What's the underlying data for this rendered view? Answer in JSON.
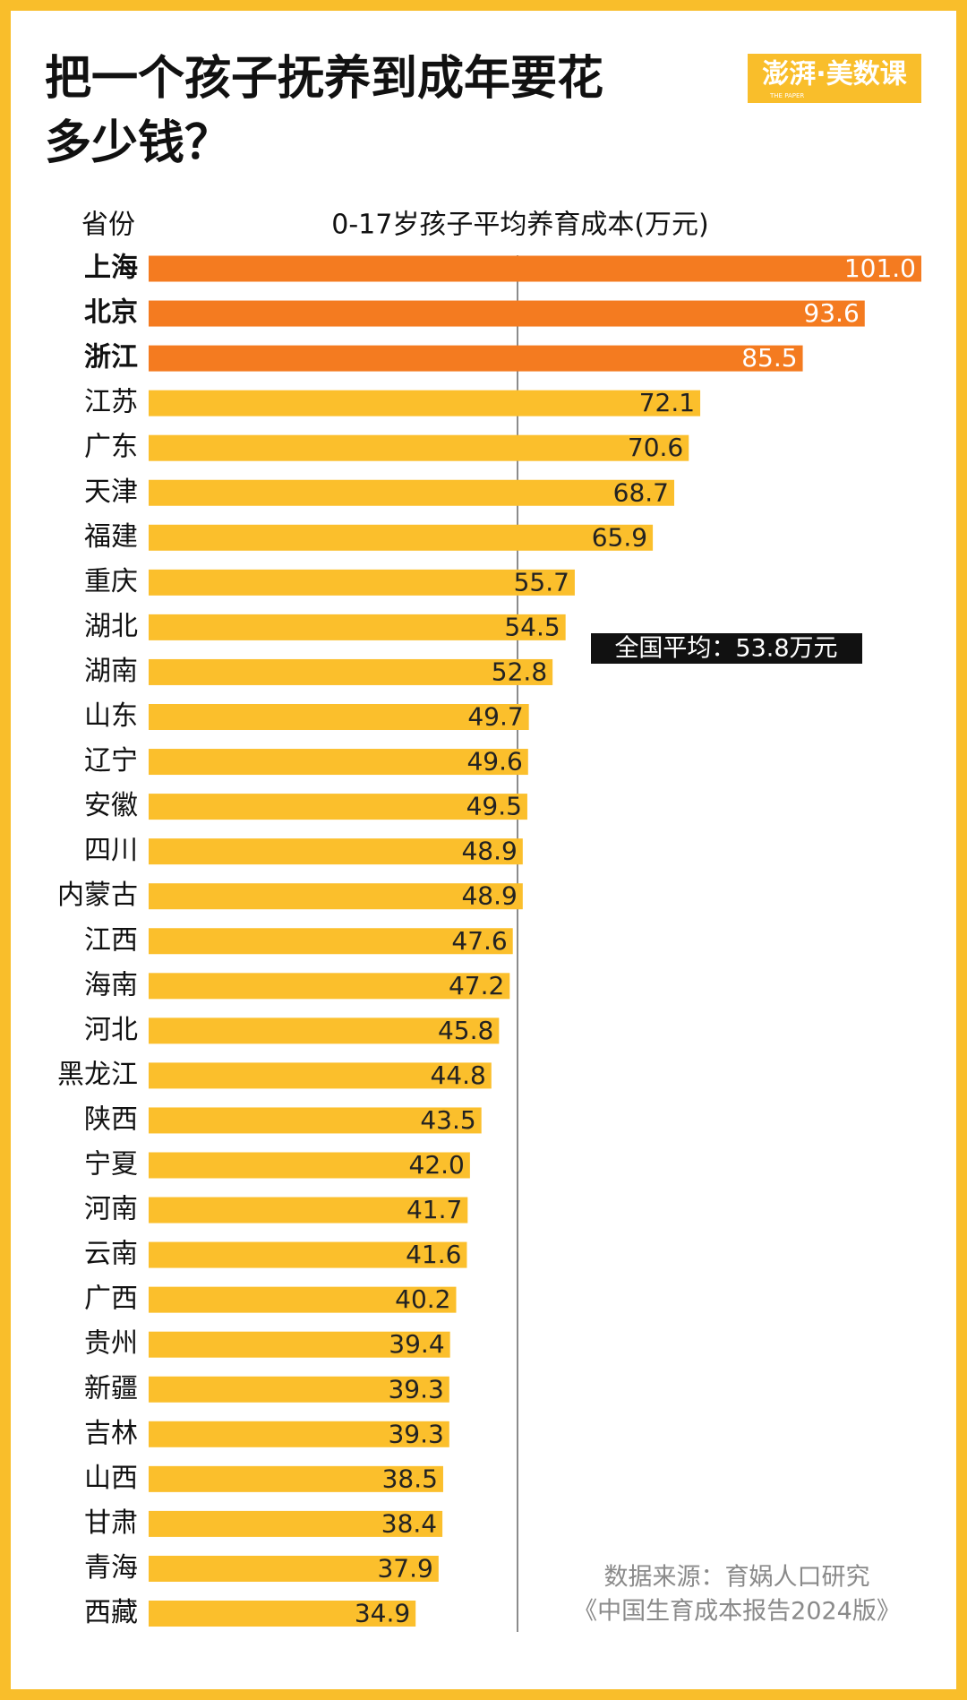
{
  "chart_data": {
    "type": "bar",
    "title": [
      "把一个孩子抚养到成年要花",
      "多少钱？"
    ],
    "logo": "澎湃·美数课",
    "logo_sub": "THE PAPER",
    "category_header": "省份",
    "value_header": "0-17岁孩子平均养育成本(万元)",
    "annotation": "全国平均：53.8万元",
    "source": [
      "数据来源：育娲人口研究",
      "《中国生育成本报告2024版》"
    ],
    "categories": [
      "上海",
      "北京",
      "浙江",
      "江苏",
      "广东",
      "天津",
      "福建",
      "重庆",
      "湖北",
      "湖南",
      "山东",
      "辽宁",
      "安徽",
      "四川",
      "内蒙古",
      "江西",
      "海南",
      "河北",
      "黑龙江",
      "陕西",
      "宁夏",
      "河南",
      "云南",
      "广西",
      "贵州",
      "新疆",
      "吉林",
      "山西",
      "甘肃",
      "青海",
      "西藏"
    ],
    "values": [
      101.0,
      93.6,
      85.5,
      72.1,
      70.6,
      68.7,
      65.9,
      55.7,
      54.5,
      52.8,
      49.7,
      49.6,
      49.5,
      48.9,
      48.9,
      47.6,
      47.2,
      45.8,
      44.8,
      43.5,
      42.0,
      41.7,
      41.6,
      40.2,
      39.4,
      39.3,
      39.3,
      38.5,
      38.4,
      37.9,
      34.9
    ],
    "value_labels": [
      "101.0",
      "93.6",
      "85.5",
      "72.1",
      "70.6",
      "68.7",
      "65.9",
      "55.7",
      "54.5",
      "52.8",
      "49.7",
      "49.6",
      "49.5",
      "48.9",
      "48.9",
      "47.6",
      "47.2",
      "45.8",
      "44.8",
      "43.5",
      "42.0",
      "41.7",
      "41.6",
      "40.2",
      "39.4",
      "39.3",
      "39.3",
      "38.5",
      "38.4",
      "37.9",
      "34.9"
    ],
    "color": "#fbbf2c",
    "colors": [
      "#f47b20",
      "#f47b20",
      "#f47b20",
      "#fbbf2c",
      "#fbbf2c",
      "#fbbf2c",
      "#fbbf2c",
      "#fbbf2c",
      "#fbbf2c",
      "#fbbf2c",
      "#fbbf2c",
      "#fbbf2c",
      "#fbbf2c",
      "#fbbf2c",
      "#fbbf2c",
      "#fbbf2c",
      "#fbbf2c",
      "#fbbf2c",
      "#fbbf2c",
      "#fbbf2c",
      "#fbbf2c",
      "#fbbf2c",
      "#fbbf2c",
      "#fbbf2c",
      "#fbbf2c",
      "#fbbf2c",
      "#fbbf2c",
      "#fbbf2c",
      "#fbbf2c",
      "#fbbf2c",
      "#fbbf2c"
    ],
    "xlim": [
      0,
      101
    ]
  }
}
